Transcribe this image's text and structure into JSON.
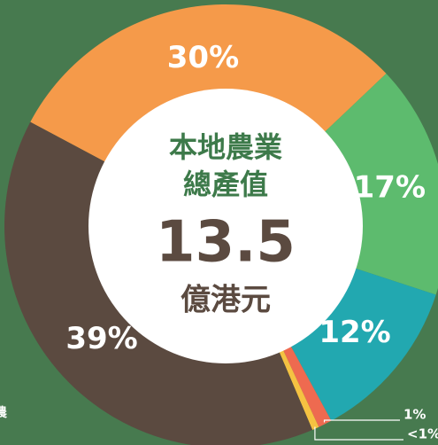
{
  "chart_data": {
    "type": "donut",
    "center_text": [
      "本地農業",
      "總產值",
      "13.5",
      "億港元"
    ],
    "side_text": "農",
    "categories": [
      null,
      null,
      null,
      null,
      null,
      null
    ],
    "values": [
      30,
      17,
      12,
      1,
      0.5,
      39
    ],
    "value_labels": [
      "30%",
      "17%",
      "12%",
      "1%",
      "<1%",
      "39%"
    ],
    "colors": [
      "#f59a4a",
      "#5dbb6e",
      "#22a8b0",
      "#ee6a50",
      "#f5c242",
      "#5b4a40"
    ]
  }
}
